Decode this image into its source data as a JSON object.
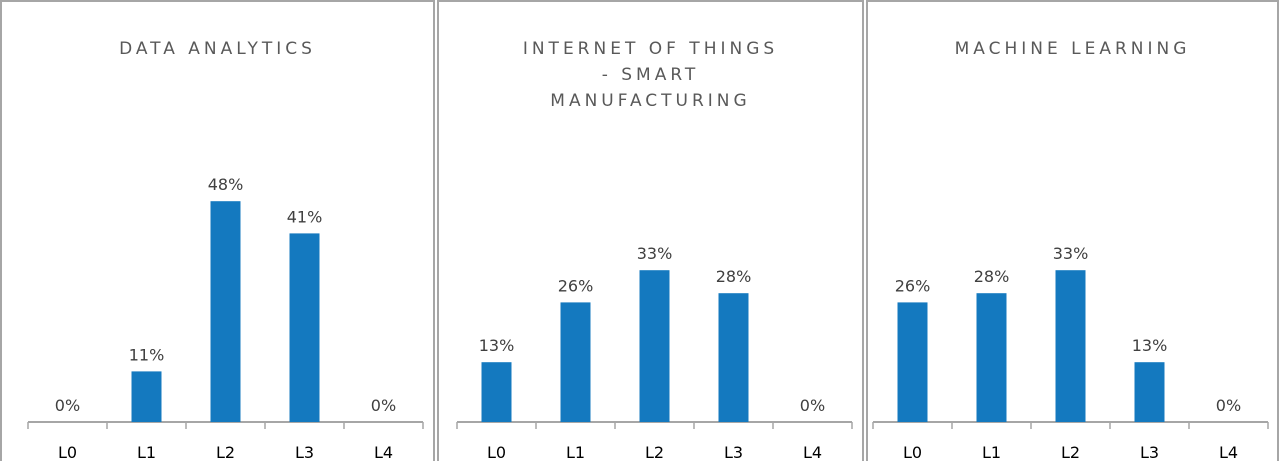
{
  "chart_data": [
    {
      "type": "bar",
      "title": "DATA ANALYTICS",
      "categories": [
        "L0",
        "L1",
        "L2",
        "L3",
        "L4"
      ],
      "values": [
        0,
        11,
        48,
        41,
        0
      ],
      "value_labels": [
        "0%",
        "11%",
        "48%",
        "41%",
        "0%"
      ],
      "unit": "%",
      "ylim": [
        0,
        55
      ],
      "grid": false,
      "legend": "none",
      "bar_color": "#1479bf"
    },
    {
      "type": "bar",
      "title": "INTERNET OF THINGS\n- SMART\nMANUFACTURING",
      "categories": [
        "L0",
        "L1",
        "L2",
        "L3",
        "L4"
      ],
      "values": [
        13,
        26,
        33,
        28,
        0
      ],
      "value_labels": [
        "13%",
        "26%",
        "33%",
        "28%",
        "0%"
      ],
      "unit": "%",
      "ylim": [
        0,
        55
      ],
      "grid": false,
      "legend": "none",
      "bar_color": "#1479bf"
    },
    {
      "type": "bar",
      "title": "MACHINE LEARNING",
      "categories": [
        "L0",
        "L1",
        "L2",
        "L3",
        "L4"
      ],
      "values": [
        26,
        28,
        33,
        13,
        0
      ],
      "value_labels": [
        "26%",
        "28%",
        "33%",
        "13%",
        "0%"
      ],
      "unit": "%",
      "ylim": [
        0,
        55
      ],
      "grid": false,
      "legend": "none",
      "bar_color": "#1479bf"
    }
  ]
}
